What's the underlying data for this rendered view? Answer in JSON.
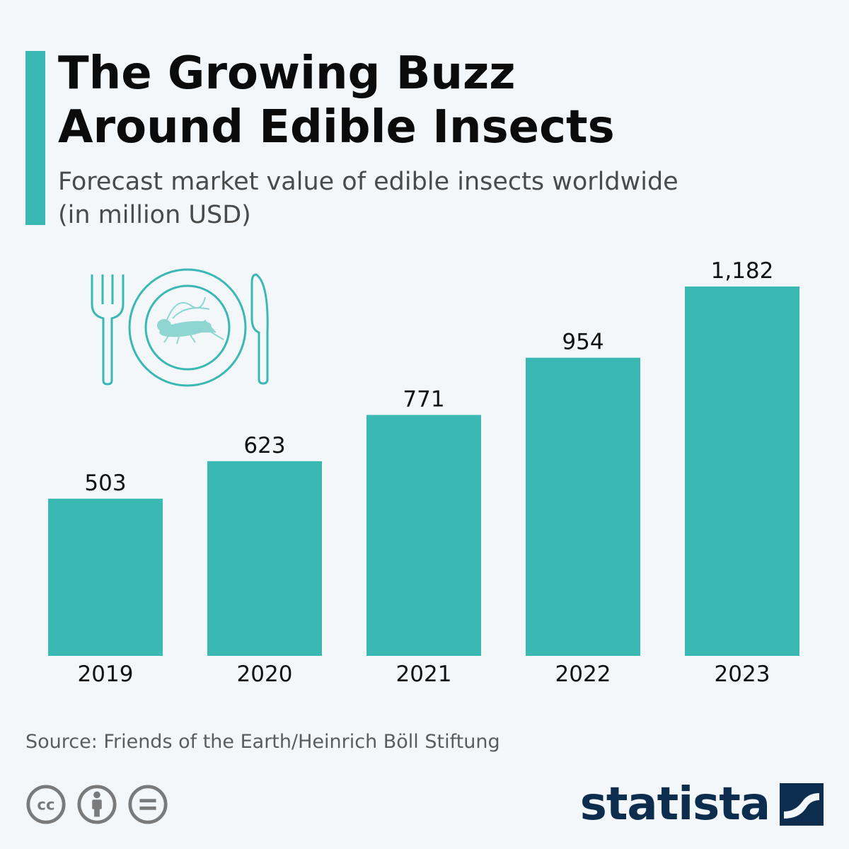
{
  "header": {
    "title": "The Growing Buzz\nAround Edible Insects",
    "subtitle": "Forecast market value of edible insects worldwide\n(in million USD)"
  },
  "chart_data": {
    "type": "bar",
    "categories": [
      "2019",
      "2020",
      "2021",
      "2022",
      "2023"
    ],
    "values": [
      503,
      623,
      771,
      954,
      1182
    ],
    "value_labels": [
      "503",
      "623",
      "771",
      "954",
      "1,182"
    ],
    "title": "The Growing Buzz Around Edible Insects",
    "subtitle": "Forecast market value of edible insects worldwide (in million USD)",
    "xlabel": "",
    "ylabel": "",
    "ylim": [
      0,
      1200
    ],
    "grid": false,
    "legend": "none",
    "bar_color": "#3ab8b4"
  },
  "illustration": {
    "icon": "plate-with-cricket-fork-knife-icon",
    "color": "#3ab8b4"
  },
  "footer": {
    "source": "Source: Friends of the Earth/Heinrich Böll Stiftung",
    "license_icons": [
      "cc-icon",
      "attribution-icon",
      "no-derivatives-icon"
    ],
    "brand": "statista",
    "brand_color": "#0d2d4f"
  }
}
